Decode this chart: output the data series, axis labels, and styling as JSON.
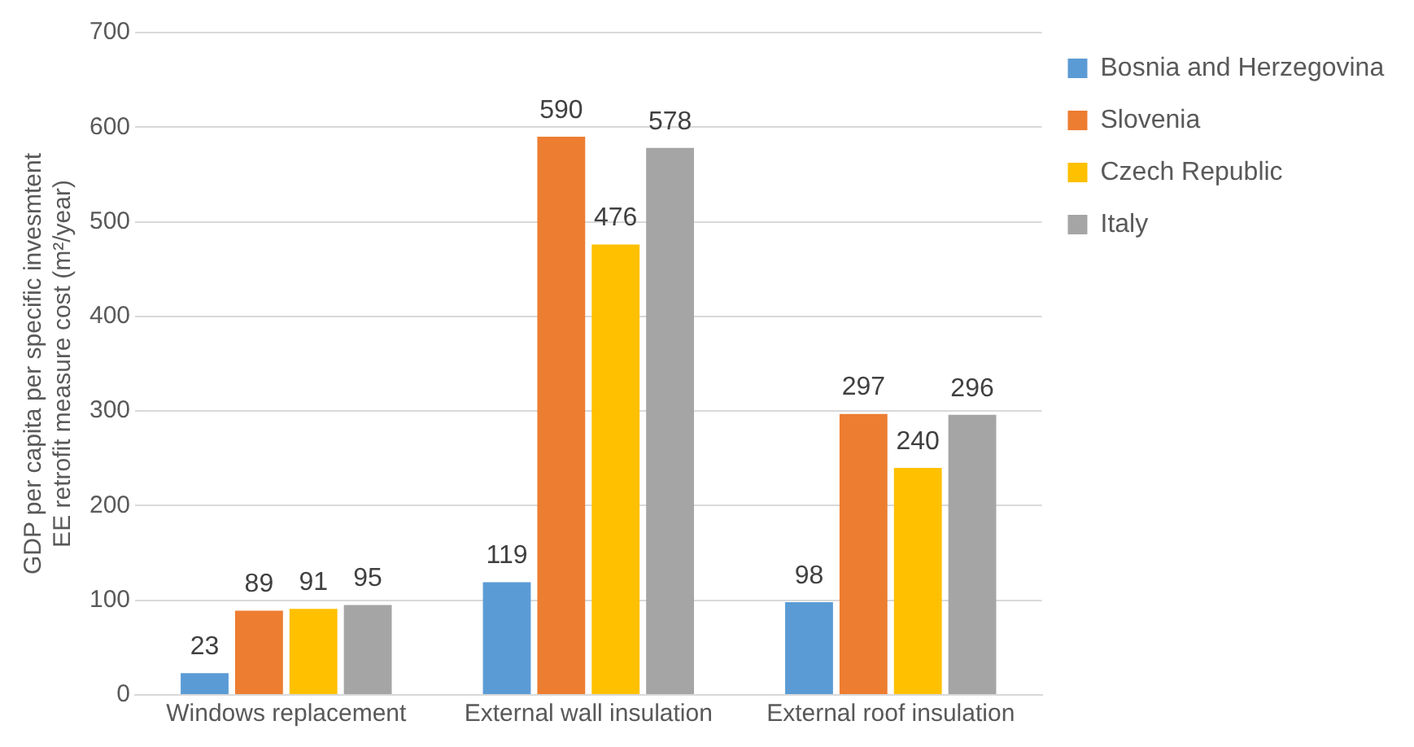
{
  "chart_data": {
    "type": "bar",
    "ylabel": "GDP per capita per specific invesmtent EE retrofit measure cost (m²/year)",
    "categories": [
      "Windows replacement",
      "External wall insulation",
      "External roof insulation"
    ],
    "series": [
      {
        "name": "Bosnia and Herzegovina",
        "color": "#5b9bd5",
        "values": [
          23,
          119,
          98
        ]
      },
      {
        "name": "Slovenia",
        "color": "#ed7d31",
        "values": [
          89,
          590,
          297
        ]
      },
      {
        "name": "Czech Republic",
        "color": "#ffc000",
        "values": [
          91,
          476,
          240
        ]
      },
      {
        "name": "Italy",
        "color": "#a5a5a5",
        "values": [
          95,
          578,
          296
        ]
      }
    ],
    "ylim": [
      0,
      700
    ],
    "yticks": [
      0,
      100,
      200,
      300,
      400,
      500,
      600,
      700
    ],
    "grid": "y",
    "legend": "top right",
    "data_labels": true
  }
}
